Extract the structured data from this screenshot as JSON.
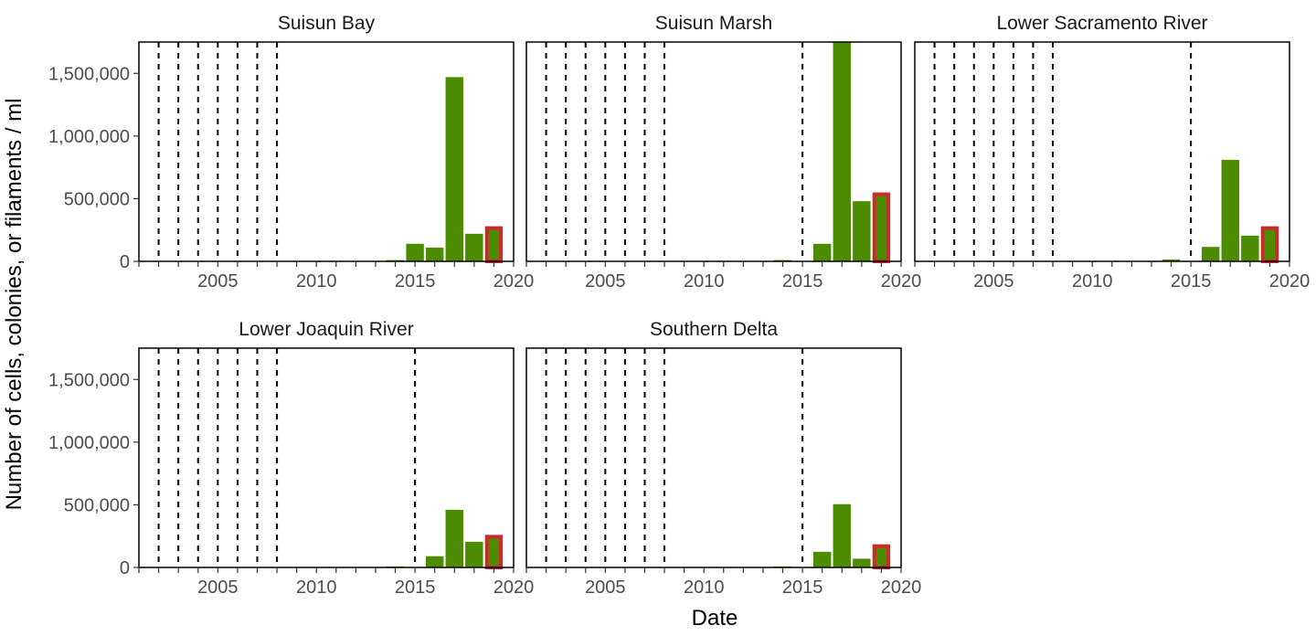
{
  "chart_data": {
    "type": "bar",
    "xlabel": "Date",
    "ylabel": "Number of cells, colonies, or filaments / ml",
    "xlim": [
      2001,
      2020
    ],
    "ylim": [
      0,
      1750000
    ],
    "x_ticks": [
      "2005",
      "2010",
      "2015",
      "2020"
    ],
    "y_ticks": [
      "0",
      "500,000",
      "1,000,000",
      "1,500,000"
    ],
    "colors": {
      "bar": "#4b8c00",
      "highlight_outline": "#cc2b2b",
      "reference_line": "#000000",
      "panel_border": "#000000"
    },
    "highlight_year": 2019,
    "reference_line_style": "dashed",
    "panels": [
      {
        "title": "Suisun Bay",
        "reference_lines": [
          2002,
          2003,
          2004,
          2005,
          2006,
          2007,
          2008
        ],
        "bars": [
          {
            "year": 2014,
            "value": 10000
          },
          {
            "year": 2015,
            "value": 140000
          },
          {
            "year": 2016,
            "value": 110000
          },
          {
            "year": 2017,
            "value": 1470000
          },
          {
            "year": 2018,
            "value": 220000
          },
          {
            "year": 2019,
            "value": 280000
          }
        ]
      },
      {
        "title": "Suisun Marsh",
        "reference_lines": [
          2002,
          2003,
          2004,
          2005,
          2006,
          2007,
          2008,
          2015
        ],
        "bars": [
          {
            "year": 2014,
            "value": 10000
          },
          {
            "year": 2016,
            "value": 140000
          },
          {
            "year": 2017,
            "value": 1750000
          },
          {
            "year": 2018,
            "value": 480000
          },
          {
            "year": 2019,
            "value": 550000
          }
        ]
      },
      {
        "title": "Lower Sacramento River",
        "reference_lines": [
          2002,
          2003,
          2004,
          2005,
          2006,
          2007,
          2008,
          2015
        ],
        "bars": [
          {
            "year": 2014,
            "value": 15000
          },
          {
            "year": 2016,
            "value": 115000
          },
          {
            "year": 2017,
            "value": 810000
          },
          {
            "year": 2018,
            "value": 205000
          },
          {
            "year": 2019,
            "value": 280000
          }
        ]
      },
      {
        "title": "Lower Joaquin River",
        "reference_lines": [
          2002,
          2003,
          2004,
          2005,
          2006,
          2007,
          2008,
          2015
        ],
        "bars": [
          {
            "year": 2014,
            "value": 8000
          },
          {
            "year": 2016,
            "value": 90000
          },
          {
            "year": 2017,
            "value": 460000
          },
          {
            "year": 2018,
            "value": 205000
          },
          {
            "year": 2019,
            "value": 260000
          }
        ]
      },
      {
        "title": "Southern Delta",
        "reference_lines": [
          2002,
          2003,
          2004,
          2005,
          2006,
          2007,
          2008,
          2015
        ],
        "bars": [
          {
            "year": 2014,
            "value": 8000
          },
          {
            "year": 2016,
            "value": 125000
          },
          {
            "year": 2017,
            "value": 505000
          },
          {
            "year": 2018,
            "value": 70000
          },
          {
            "year": 2019,
            "value": 185000
          }
        ]
      }
    ]
  }
}
